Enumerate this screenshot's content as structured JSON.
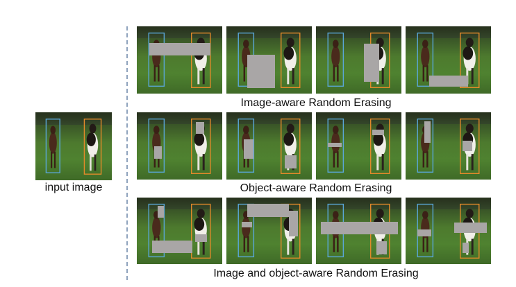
{
  "figure": {
    "input_caption": "input image",
    "rows": [
      {
        "caption": "Image-aware Random Erasing"
      },
      {
        "caption": "Object-aware Random Erasing"
      },
      {
        "caption": "Image and object-aware Random Erasing"
      }
    ]
  },
  "colors": {
    "box_blue": "#5aa7d8",
    "box_orange": "#e48a2a",
    "erase_gray": "#a9a6a6",
    "divider": "#8fa3bd"
  }
}
